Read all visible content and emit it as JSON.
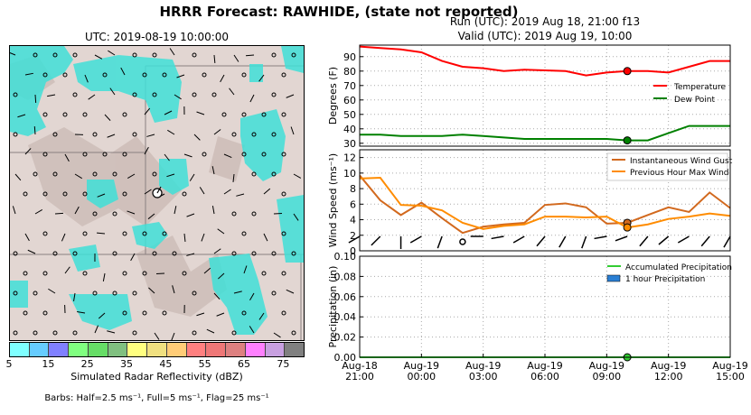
{
  "title": "HRRR Forecast: RAWHIDE, (state not reported)",
  "map": {
    "title": "UTC: 2019-08-19 10:00:00",
    "colorbar": {
      "label": "Simulated Radar Reflectivity (dBZ)",
      "ticks": [
        "5",
        "15",
        "25",
        "35",
        "45",
        "55",
        "65",
        "75"
      ],
      "colors": [
        "#7fffff",
        "#66ccff",
        "#8080ff",
        "#80ff80",
        "#66dd66",
        "#80c080",
        "#ffff80",
        "#f0e080",
        "#ffcc77",
        "#ff8080",
        "#ee7777",
        "#dd8080",
        "#ff80ff",
        "#c8a0e0",
        "#808080"
      ]
    },
    "barbs_note": "Barbs: Half=2.5 ms⁻¹, Full=5 ms⁻¹, Flag=25 ms⁻¹"
  },
  "run_line": "Run (UTC): 2019 Aug 18, 21:00 f13",
  "valid_line": "Valid (UTC): 2019 Aug 19, 10:00",
  "chart_data": [
    {
      "type": "line",
      "ylabel": "Degrees (F)",
      "ylim": [
        28,
        98
      ],
      "yticks": [
        "30",
        "40",
        "50",
        "60",
        "70",
        "80",
        "90"
      ],
      "x_hours": [
        0,
        1,
        2,
        3,
        4,
        5,
        6,
        7,
        8,
        9,
        10,
        11,
        12,
        13,
        14,
        15,
        16,
        17,
        18
      ],
      "series": [
        {
          "name": "Temperature",
          "color": "#ff0000",
          "values": [
            97,
            96,
            95,
            93,
            87,
            83,
            82,
            80,
            81,
            80.5,
            80,
            77,
            79,
            80,
            80,
            79,
            83,
            87,
            87
          ]
        },
        {
          "name": "Dew Point",
          "color": "#008000",
          "values": [
            36,
            36,
            35,
            35,
            35,
            36,
            35,
            34,
            33,
            33,
            33,
            33,
            33,
            32,
            32,
            37,
            42,
            42,
            42
          ]
        }
      ],
      "marker_hour": 13,
      "legend": "center-right",
      "grid": true
    },
    {
      "type": "line",
      "ylabel": "Wind Speed (ms⁻¹)",
      "ylim": [
        0,
        13
      ],
      "yticks": [
        "0",
        "2",
        "4",
        "6",
        "8",
        "10",
        "12"
      ],
      "series": [
        {
          "name": "Instantaneous Wind Gust",
          "color": "#d2691e",
          "values": [
            9.7,
            6.5,
            4.6,
            6.2,
            4.2,
            2.3,
            3.1,
            3.4,
            3.6,
            5.9,
            6.1,
            5.6,
            3.5,
            3.6,
            4.6,
            5.6,
            5.0,
            7.5,
            5.5
          ]
        },
        {
          "name": "Previous Hour Max Wind",
          "color": "#ff8c00",
          "values": [
            9.3,
            9.4,
            5.9,
            5.8,
            5.2,
            3.6,
            2.8,
            3.2,
            3.4,
            4.4,
            4.4,
            4.3,
            4.4,
            3.0,
            3.4,
            4.1,
            4.4,
            4.8,
            4.5
          ]
        }
      ],
      "marker_hour": 13,
      "legend": "top-right",
      "grid": true
    },
    {
      "type": "line",
      "ylabel": "Precipitation (in)",
      "ylim": [
        0,
        0.1
      ],
      "yticks": [
        "0.00",
        "0.02",
        "0.04",
        "0.06",
        "0.08",
        "0.10"
      ],
      "series": [
        {
          "name": "Accumulated Precipitation",
          "color": "#33cc33",
          "values": [
            0,
            0,
            0,
            0,
            0,
            0,
            0,
            0,
            0,
            0,
            0,
            0,
            0,
            0,
            0,
            0,
            0,
            0,
            0
          ]
        }
      ],
      "bar_series": {
        "name": "1 hour Precipitation",
        "color": "#2a7fd4",
        "values": [
          0,
          0,
          0,
          0,
          0,
          0,
          0,
          0,
          0,
          0,
          0,
          0,
          0,
          0,
          0,
          0,
          0,
          0,
          0
        ]
      },
      "marker_hour": 13,
      "legend": "top-right",
      "grid": true
    }
  ],
  "x_axis": {
    "ticks": [
      {
        "hour": 0,
        "line1": "Aug-18",
        "line2": "21:00"
      },
      {
        "hour": 3,
        "line1": "Aug-19",
        "line2": "00:00"
      },
      {
        "hour": 6,
        "line1": "Aug-19",
        "line2": "03:00"
      },
      {
        "hour": 9,
        "line1": "Aug-19",
        "line2": "06:00"
      },
      {
        "hour": 12,
        "line1": "Aug-19",
        "line2": "09:00"
      },
      {
        "hour": 15,
        "line1": "Aug-19",
        "line2": "12:00"
      },
      {
        "hour": 18,
        "line1": "Aug-19",
        "line2": "15:00"
      }
    ]
  }
}
